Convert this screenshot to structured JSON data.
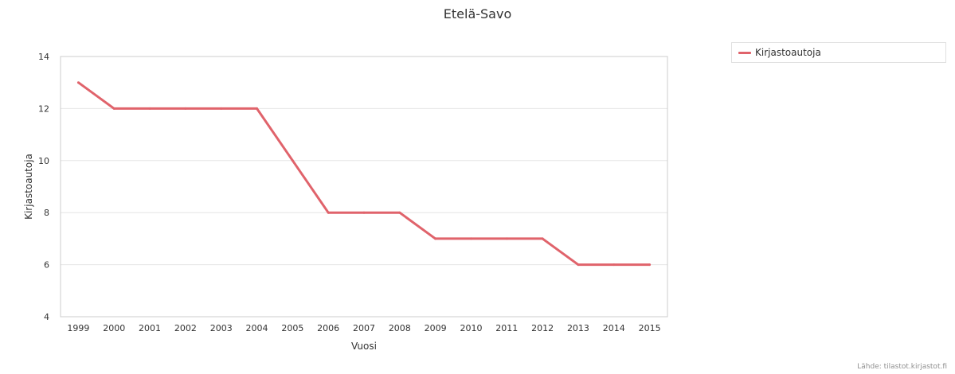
{
  "chart_data": {
    "type": "line",
    "title": "Etelä-Savo",
    "xlabel": "Vuosi",
    "ylabel": "Kirjastoautoja",
    "categories": [
      "1999",
      "2000",
      "2001",
      "2002",
      "2003",
      "2004",
      "2005",
      "2006",
      "2007",
      "2008",
      "2009",
      "2010",
      "2011",
      "2012",
      "2013",
      "2014",
      "2015"
    ],
    "series": [
      {
        "name": "Kirjastoautoja",
        "color": "#e0636b",
        "values": [
          13,
          12,
          12,
          12,
          12,
          12,
          10,
          8,
          8,
          8,
          7,
          7,
          7,
          7,
          6,
          6,
          6
        ]
      }
    ],
    "ylim": [
      4,
      14
    ],
    "yticks": [
      4,
      6,
      8,
      10,
      12,
      14
    ],
    "grid": true,
    "legend_position": "top-right"
  },
  "source_text": "Lähde: tilastot.kirjastot.fi"
}
